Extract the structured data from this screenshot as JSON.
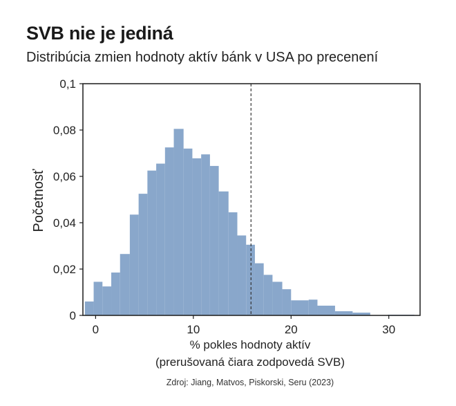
{
  "title": "SVB nie je jediná",
  "subtitle": "Distribúcia zmien hodnoty aktív bánk v USA po precenení",
  "source": "Zdroj: Jiang,  Matvos, Piskorski, Seru (2023)",
  "chart_data": {
    "type": "histogram",
    "ylabel": "Početnosť",
    "xlabel": [
      "% pokles hodnoty aktív",
      "(prerušovaná čiara zodpovedá SVB)"
    ],
    "xlim": [
      -1.3,
      33.2
    ],
    "ylim": [
      0,
      0.1
    ],
    "xticks": [
      0,
      10,
      20,
      30
    ],
    "xtick_labels": [
      "0",
      "10",
      "20",
      "30"
    ],
    "yticks": [
      0,
      0.02,
      0.04,
      0.06,
      0.08,
      0.1
    ],
    "ytick_labels": [
      "0",
      "0,02",
      "0,04",
      "0,06",
      "0,08",
      "0,1"
    ],
    "bar_color": "#89a7cb",
    "svb_line": 15.9,
    "bins": [
      {
        "x0": -1.1,
        "x1": -0.2,
        "y": 0.006
      },
      {
        "x0": -0.2,
        "x1": 0.7,
        "y": 0.0145
      },
      {
        "x0": 0.7,
        "x1": 1.6,
        "y": 0.0125
      },
      {
        "x0": 1.6,
        "x1": 2.5,
        "y": 0.0185
      },
      {
        "x0": 2.5,
        "x1": 3.5,
        "y": 0.0265
      },
      {
        "x0": 3.5,
        "x1": 4.4,
        "y": 0.0435
      },
      {
        "x0": 4.4,
        "x1": 5.3,
        "y": 0.0525
      },
      {
        "x0": 5.3,
        "x1": 6.2,
        "y": 0.0625
      },
      {
        "x0": 6.2,
        "x1": 7.1,
        "y": 0.0655
      },
      {
        "x0": 7.1,
        "x1": 8.0,
        "y": 0.0725
      },
      {
        "x0": 8.0,
        "x1": 9.0,
        "y": 0.0805
      },
      {
        "x0": 9.0,
        "x1": 9.9,
        "y": 0.072
      },
      {
        "x0": 9.9,
        "x1": 10.8,
        "y": 0.0678
      },
      {
        "x0": 10.8,
        "x1": 11.7,
        "y": 0.0695
      },
      {
        "x0": 11.7,
        "x1": 12.6,
        "y": 0.0645
      },
      {
        "x0": 12.6,
        "x1": 13.6,
        "y": 0.0535
      },
      {
        "x0": 13.6,
        "x1": 14.5,
        "y": 0.0445
      },
      {
        "x0": 14.5,
        "x1": 15.4,
        "y": 0.0345
      },
      {
        "x0": 15.4,
        "x1": 16.3,
        "y": 0.0305
      },
      {
        "x0": 16.3,
        "x1": 17.2,
        "y": 0.0225
      },
      {
        "x0": 17.2,
        "x1": 18.1,
        "y": 0.0175
      },
      {
        "x0": 18.1,
        "x1": 19.1,
        "y": 0.0145
      },
      {
        "x0": 19.1,
        "x1": 20.0,
        "y": 0.0113
      },
      {
        "x0": 20.0,
        "x1": 21.8,
        "y": 0.0065
      },
      {
        "x0": 21.8,
        "x1": 22.7,
        "y": 0.0068
      },
      {
        "x0": 22.7,
        "x1": 24.5,
        "y": 0.0042
      },
      {
        "x0": 24.5,
        "x1": 26.3,
        "y": 0.0018
      },
      {
        "x0": 26.3,
        "x1": 28.1,
        "y": 0.0012
      },
      {
        "x0": 29.9,
        "x1": 32.6,
        "y": 0.0003
      }
    ]
  }
}
